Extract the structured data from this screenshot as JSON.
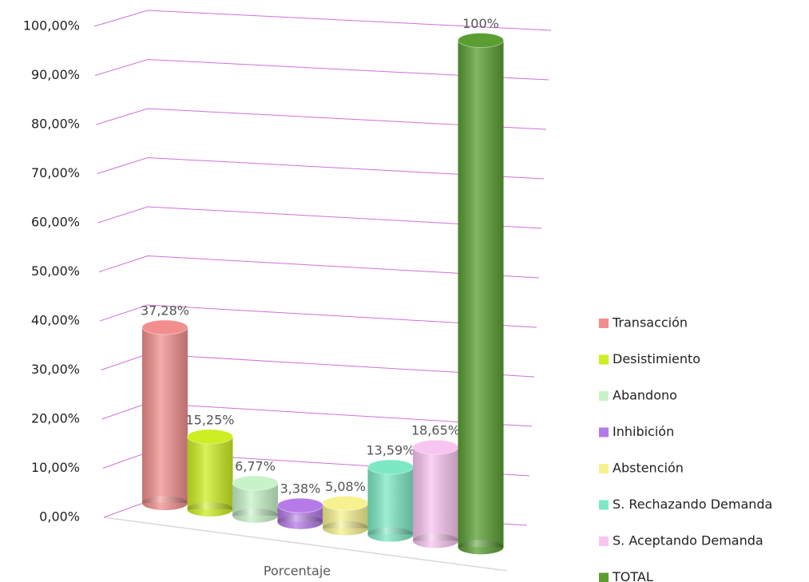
{
  "chart_data": {
    "type": "bar",
    "categories": [
      "Porcentaje"
    ],
    "series": [
      {
        "name": "Transacción",
        "color": "#f28e8e",
        "values": [
          37.28
        ],
        "value_labels": [
          "37,28%"
        ]
      },
      {
        "name": "Desistimiento",
        "color": "#ccee22",
        "values": [
          15.25
        ],
        "value_labels": [
          "15,25%"
        ]
      },
      {
        "name": "Abandono",
        "color": "#c8f2c8",
        "values": [
          6.77
        ],
        "value_labels": [
          "6,77%"
        ]
      },
      {
        "name": "Inhibición",
        "color": "#b57ae8",
        "values": [
          3.38
        ],
        "value_labels": [
          "3,38%"
        ]
      },
      {
        "name": "Abstención",
        "color": "#f6f290",
        "values": [
          5.08
        ],
        "value_labels": [
          "5,08%"
        ]
      },
      {
        "name": "S. Rechazando Demanda",
        "color": "#7de8c4",
        "values": [
          13.59
        ],
        "value_labels": [
          "13,59%"
        ]
      },
      {
        "name": "S. Aceptando Demanda",
        "color": "#f8c4f0",
        "values": [
          18.65
        ],
        "value_labels": [
          "18,65%"
        ]
      },
      {
        "name": "TOTAL",
        "color": "#5a9e32",
        "values": [
          100
        ],
        "value_labels": [
          "100%"
        ]
      }
    ],
    "ylim": [
      0,
      100
    ],
    "yticks": [
      {
        "value": 0,
        "label": "0,00%"
      },
      {
        "value": 10,
        "label": "10,00%"
      },
      {
        "value": 20,
        "label": "20,00%"
      },
      {
        "value": 30,
        "label": "30,00%"
      },
      {
        "value": 40,
        "label": "40,00%"
      },
      {
        "value": 50,
        "label": "50,00%"
      },
      {
        "value": 60,
        "label": "60,00%"
      },
      {
        "value": 70,
        "label": "70,00%"
      },
      {
        "value": 80,
        "label": "80,00%"
      },
      {
        "value": 90,
        "label": "90,00%"
      },
      {
        "value": 100,
        "label": "100,00%"
      }
    ],
    "grid": true,
    "legend": "right"
  }
}
